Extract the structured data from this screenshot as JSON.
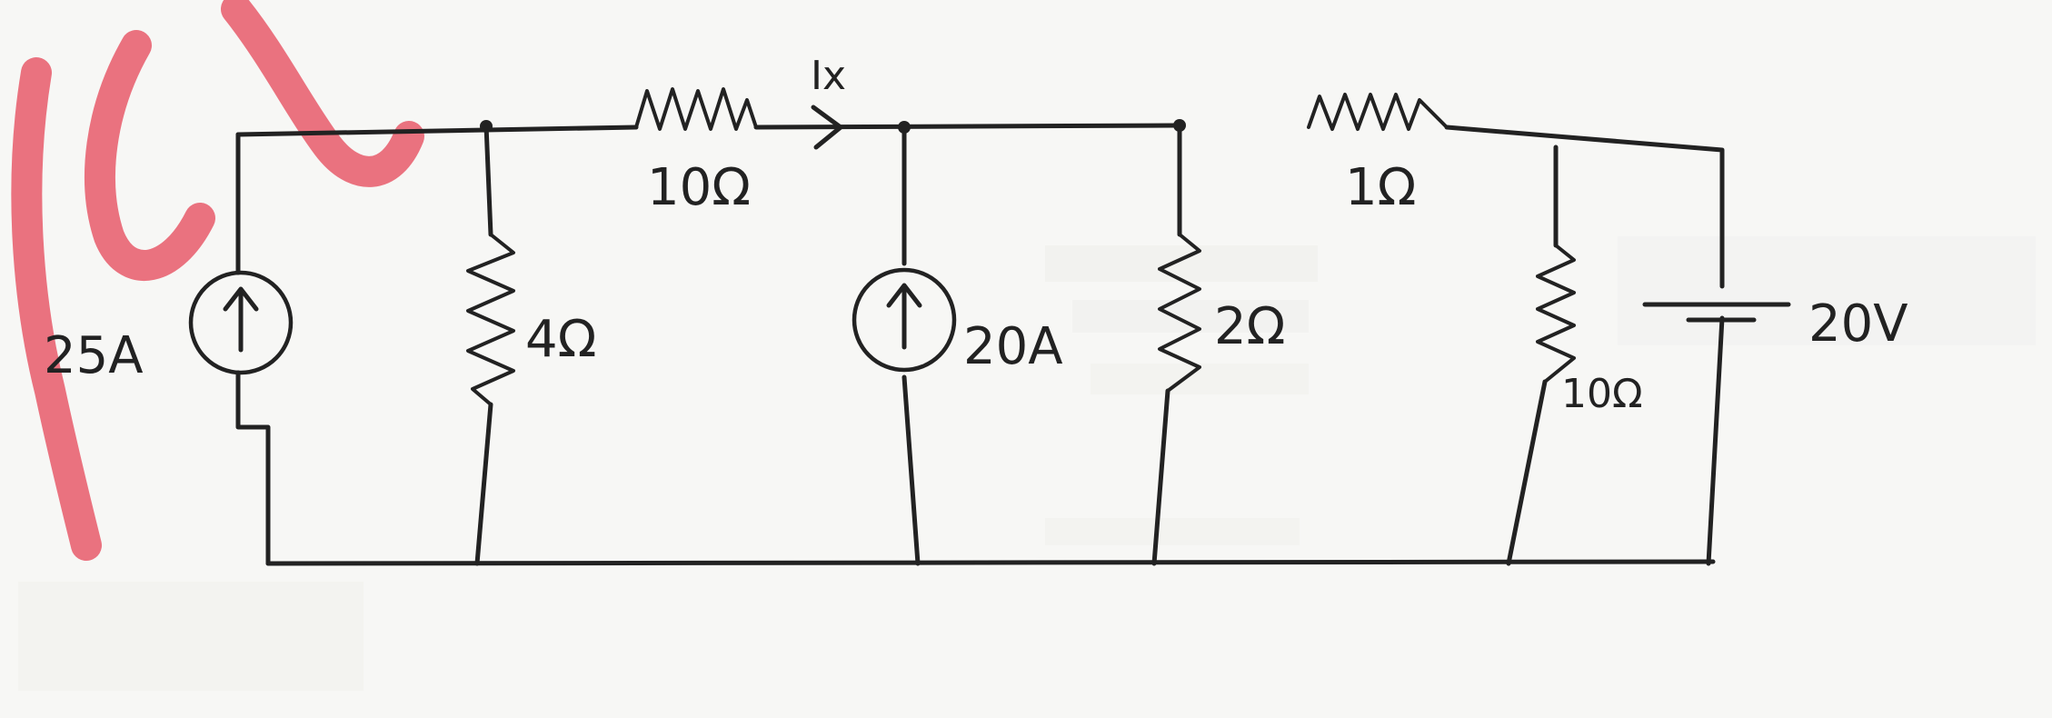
{
  "labels": {
    "current_source_left": "25A",
    "current_source_mid": "20A",
    "resistor_top_left": "10Ω",
    "resistor_top_right": "1Ω",
    "resistor_shunt_1": "4Ω",
    "resistor_shunt_2": "2Ω",
    "resistor_shunt_3": "10Ω",
    "voltage_source": "20V",
    "current_marker": "Ix"
  },
  "colors": {
    "ink": "#222222",
    "paper": "#f7f7f5",
    "watermark": "#e85a6a"
  }
}
